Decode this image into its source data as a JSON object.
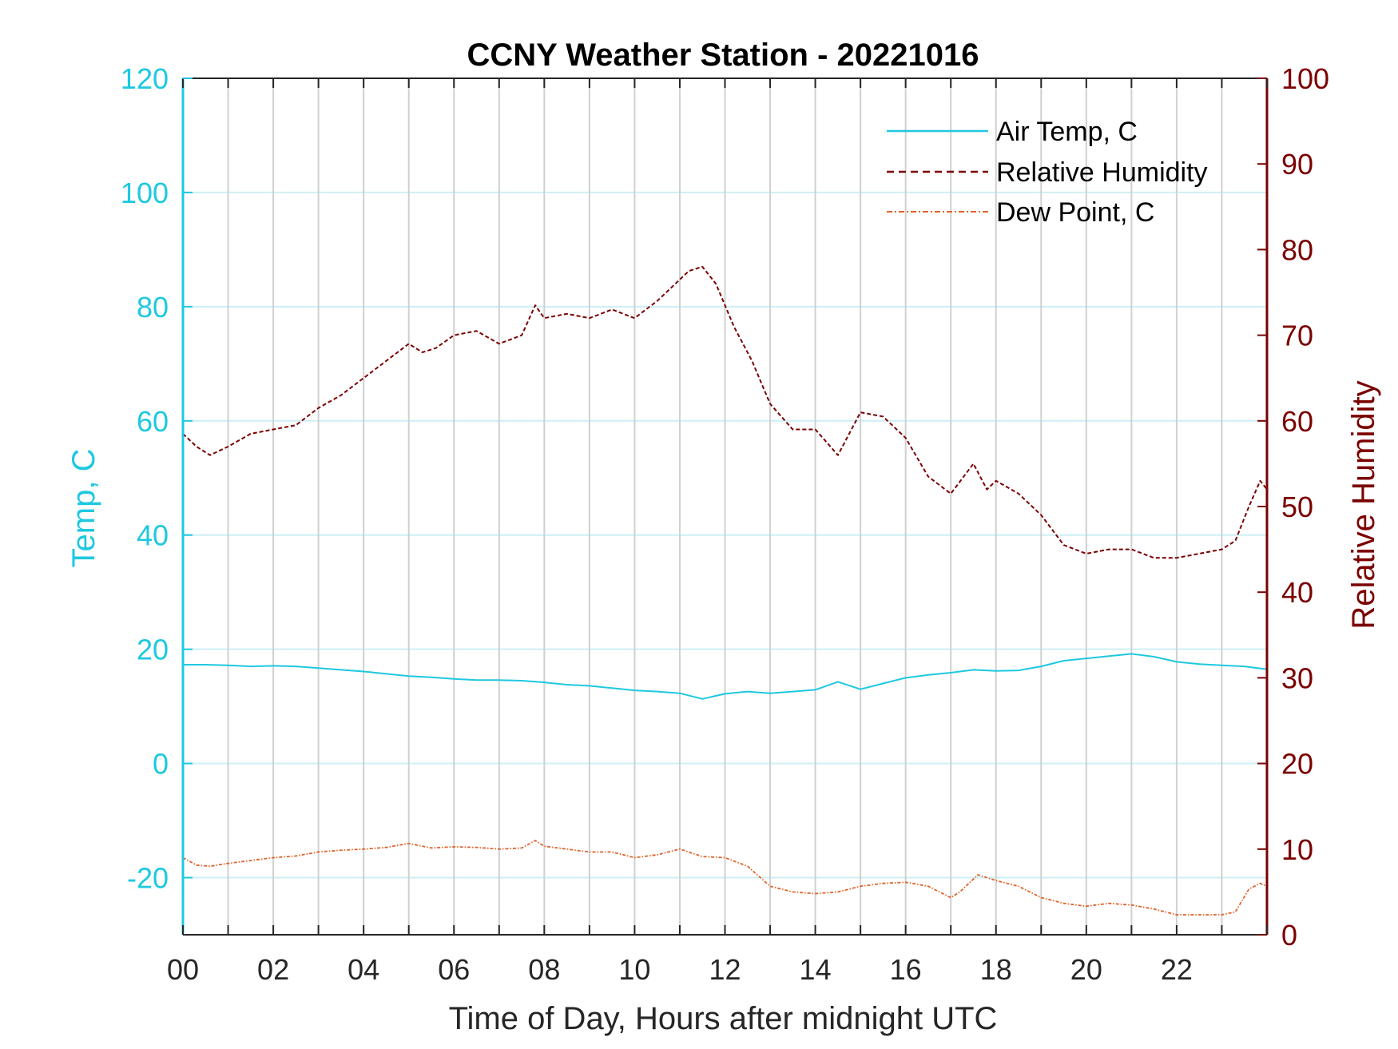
{
  "chart_data": {
    "type": "line",
    "title": "CCNY Weather Station - 20221016",
    "xlabel": "Time of Day, Hours after midnight UTC",
    "ylabel_left": "Temp, C",
    "ylabel_right": "Relative Humidity",
    "xlim": [
      0,
      24
    ],
    "ylim_left": [
      -30,
      120
    ],
    "ylim_right": [
      0,
      100
    ],
    "x_ticks": [
      "00",
      "02",
      "04",
      "06",
      "08",
      "10",
      "12",
      "14",
      "16",
      "18",
      "20",
      "22"
    ],
    "y_left_ticks": [
      "120",
      "100",
      "80",
      "60",
      "40",
      "20",
      "0",
      "-20"
    ],
    "y_right_ticks": [
      "100",
      "90",
      "80",
      "70",
      "60",
      "50",
      "40",
      "30",
      "20",
      "10",
      "0"
    ],
    "legend_position": "top-right",
    "colors": {
      "air_temp": "#1ec8e0",
      "relative_humidity": "#7b0000",
      "dew_point": "#e0622a",
      "grid_vertical": "#d0d0d0",
      "grid_horizontal": "#cdeff5"
    },
    "series": [
      {
        "name": "Air Temp, C",
        "axis": "left",
        "style": "solid",
        "x": [
          0,
          0.5,
          1,
          1.5,
          2,
          2.5,
          3,
          3.5,
          4,
          4.5,
          5,
          5.5,
          6,
          6.5,
          7,
          7.5,
          8,
          8.5,
          9,
          9.5,
          10,
          10.5,
          11,
          11.5,
          12,
          12.5,
          13,
          13.5,
          14,
          14.5,
          15,
          15.5,
          16,
          16.5,
          17,
          17.5,
          18,
          18.5,
          19,
          19.5,
          20,
          20.5,
          21,
          21.5,
          22,
          22.5,
          23,
          23.5,
          24
        ],
        "values": [
          17.3,
          17.3,
          17.2,
          17.0,
          17.1,
          17.0,
          16.7,
          16.4,
          16.1,
          15.7,
          15.3,
          15.1,
          14.8,
          14.6,
          14.6,
          14.5,
          14.2,
          13.8,
          13.6,
          13.2,
          12.8,
          12.6,
          12.3,
          11.3,
          12.2,
          12.6,
          12.3,
          12.6,
          12.9,
          14.3,
          13.0,
          14.0,
          15.0,
          15.5,
          15.9,
          16.4,
          16.2,
          16.3,
          17.0,
          18.0,
          18.4,
          18.8,
          19.2,
          18.7,
          17.8,
          17.4,
          17.2,
          17.0,
          16.5
        ]
      },
      {
        "name": "Relative Humidity",
        "axis": "right",
        "style": "dashed",
        "x": [
          0,
          0.3,
          0.6,
          1.0,
          1.5,
          2.0,
          2.5,
          3.0,
          3.5,
          4.0,
          4.5,
          5.0,
          5.3,
          5.6,
          6.0,
          6.5,
          7.0,
          7.5,
          7.8,
          8.0,
          8.5,
          9.0,
          9.5,
          10.0,
          10.5,
          11.0,
          11.2,
          11.5,
          11.8,
          12.2,
          12.6,
          13.0,
          13.5,
          14.0,
          14.5,
          15.0,
          15.5,
          16.0,
          16.5,
          17.0,
          17.5,
          17.8,
          18.0,
          18.5,
          19.0,
          19.5,
          20.0,
          20.5,
          21.0,
          21.5,
          22.0,
          22.5,
          23.0,
          23.3,
          23.6,
          23.85,
          24.0
        ],
        "values": [
          58.5,
          57,
          56,
          57,
          58.5,
          59,
          59.5,
          61.5,
          63,
          65,
          67,
          69,
          68,
          68.5,
          70,
          70.5,
          69,
          70,
          73.5,
          72,
          72.5,
          72,
          73,
          72,
          74,
          76.5,
          77.5,
          78,
          76,
          71,
          67,
          62,
          59,
          59,
          56,
          61,
          60.5,
          58,
          53.5,
          51.5,
          55,
          52,
          53,
          51.5,
          49,
          45.5,
          44.5,
          45,
          45,
          44,
          44,
          44.5,
          45,
          46,
          50,
          53,
          52
        ]
      },
      {
        "name": "Dew Point, C",
        "axis": "left",
        "style": "dash-dot",
        "x": [
          0,
          0.3,
          0.6,
          1.0,
          1.5,
          2.0,
          2.5,
          3.0,
          3.5,
          4.0,
          4.5,
          5.0,
          5.5,
          6.0,
          6.5,
          7.0,
          7.5,
          7.8,
          8.0,
          8.5,
          9.0,
          9.5,
          10.0,
          10.5,
          11.0,
          11.5,
          12.0,
          12.5,
          13.0,
          13.5,
          14.0,
          14.5,
          15.0,
          15.5,
          16.0,
          16.5,
          17.0,
          17.2,
          17.6,
          18.0,
          18.5,
          19.0,
          19.5,
          20.0,
          20.5,
          21.0,
          21.5,
          22.0,
          22.5,
          23.0,
          23.3,
          23.6,
          23.85,
          24.0
        ],
        "values": [
          -16.5,
          -17.8,
          -18.0,
          -17.5,
          -17.0,
          -16.5,
          -16.2,
          -15.5,
          -15.2,
          -15.0,
          -14.7,
          -14.0,
          -14.8,
          -14.6,
          -14.7,
          -15.0,
          -14.8,
          -13.5,
          -14.5,
          -15.0,
          -15.5,
          -15.5,
          -16.5,
          -16.0,
          -15.0,
          -16.3,
          -16.5,
          -18.0,
          -21.5,
          -22.5,
          -22.8,
          -22.5,
          -21.5,
          -21.0,
          -20.8,
          -21.5,
          -23.5,
          -22.5,
          -19.5,
          -20.5,
          -21.5,
          -23.5,
          -24.5,
          -25.0,
          -24.5,
          -24.8,
          -25.5,
          -26.5,
          -26.5,
          -26.5,
          -26.0,
          -22.0,
          -21.0,
          -21.5
        ]
      }
    ]
  }
}
